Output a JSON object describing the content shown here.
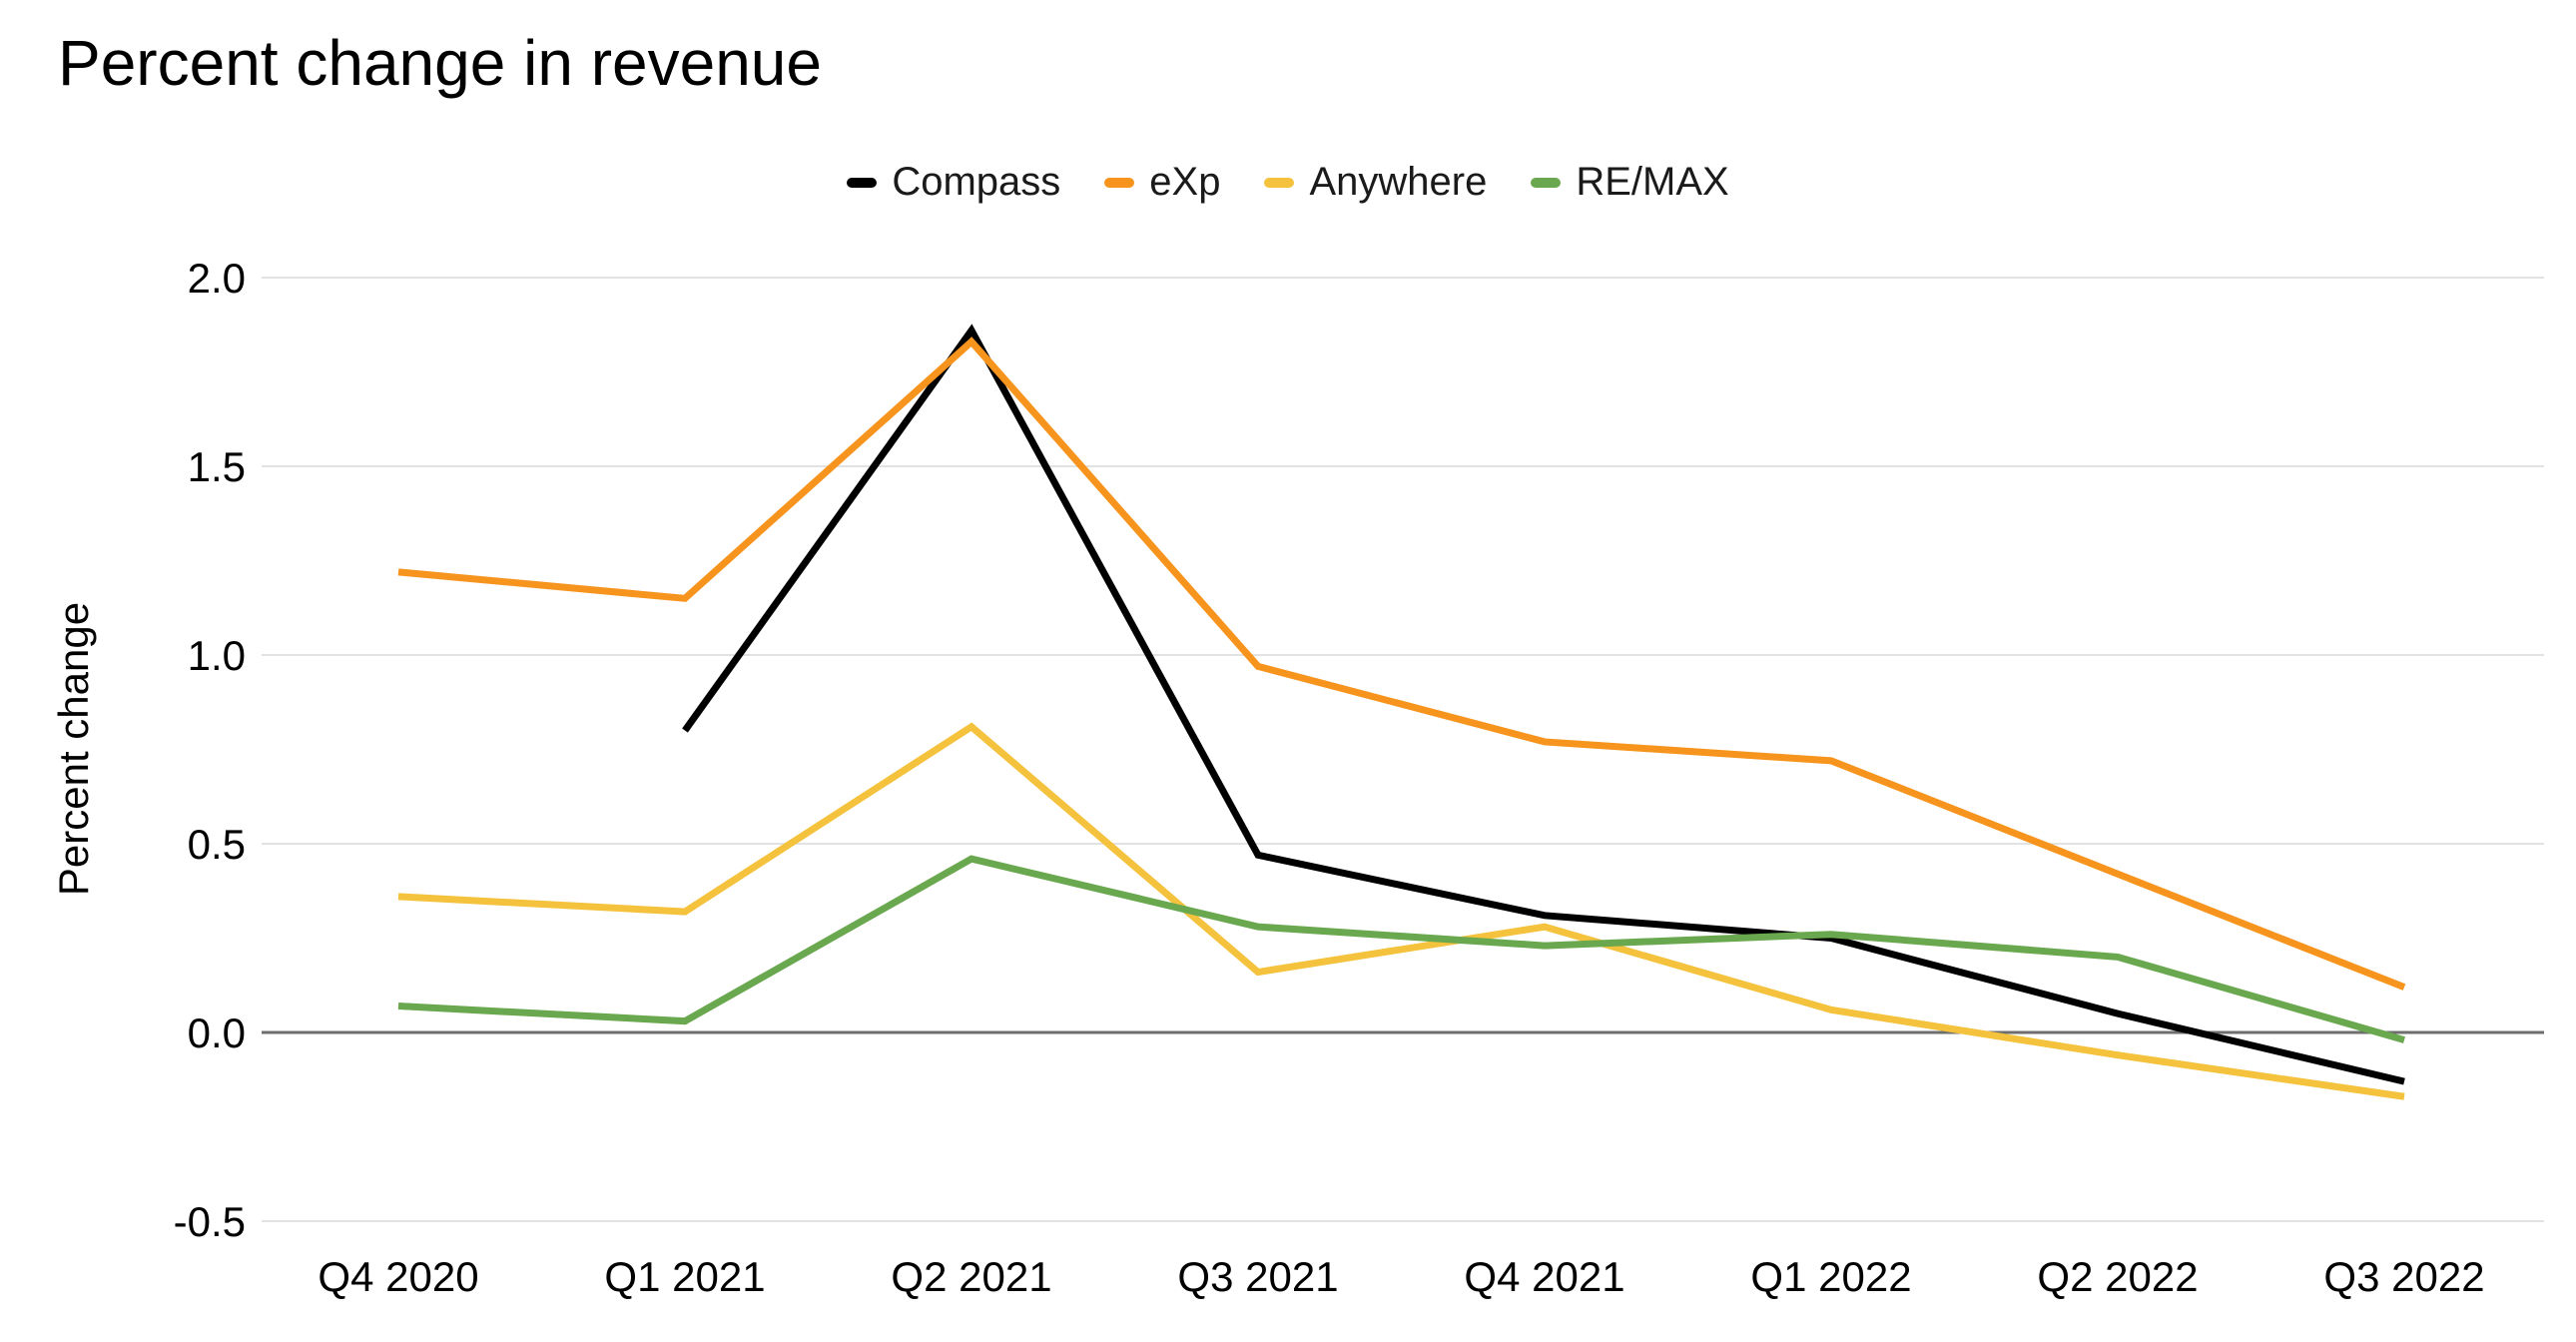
{
  "title": "Percent change in revenue",
  "colors": {
    "background": "#ffffff",
    "grid_line": "#e2e2e2",
    "zero_line": "#6e6e6e",
    "text": "#000000",
    "compass": "#000000",
    "exp": "#f7941d",
    "anywhere": "#f4c23c",
    "remax": "#6aa84f"
  },
  "chart_data": {
    "type": "line",
    "title": "Percent change in revenue",
    "xlabel": "",
    "ylabel": "Percent change",
    "categories": [
      "Q4 2020",
      "Q1 2021",
      "Q2 2021",
      "Q3 2021",
      "Q4 2021",
      "Q1 2022",
      "Q2 2022",
      "Q3 2022"
    ],
    "series": [
      {
        "name": "Compass",
        "color": "#000000",
        "values": [
          null,
          0.8,
          1.86,
          0.47,
          0.31,
          0.25,
          0.05,
          -0.13
        ]
      },
      {
        "name": "eXp",
        "color": "#f7941d",
        "values": [
          1.22,
          1.15,
          1.83,
          0.97,
          0.77,
          0.72,
          0.42,
          0.12
        ]
      },
      {
        "name": "Anywhere",
        "color": "#f4c23c",
        "values": [
          0.36,
          0.32,
          0.81,
          0.16,
          0.28,
          0.06,
          -0.06,
          -0.17
        ]
      },
      {
        "name": "RE/MAX",
        "color": "#6aa84f",
        "values": [
          0.07,
          0.03,
          0.46,
          0.28,
          0.23,
          0.26,
          0.2,
          -0.02
        ]
      }
    ],
    "y_ticks": [
      2.0,
      1.5,
      1.0,
      0.5,
      0.0,
      -0.5
    ],
    "ylim": [
      -0.5,
      2.0
    ],
    "grid": true,
    "legend_position": "top"
  }
}
